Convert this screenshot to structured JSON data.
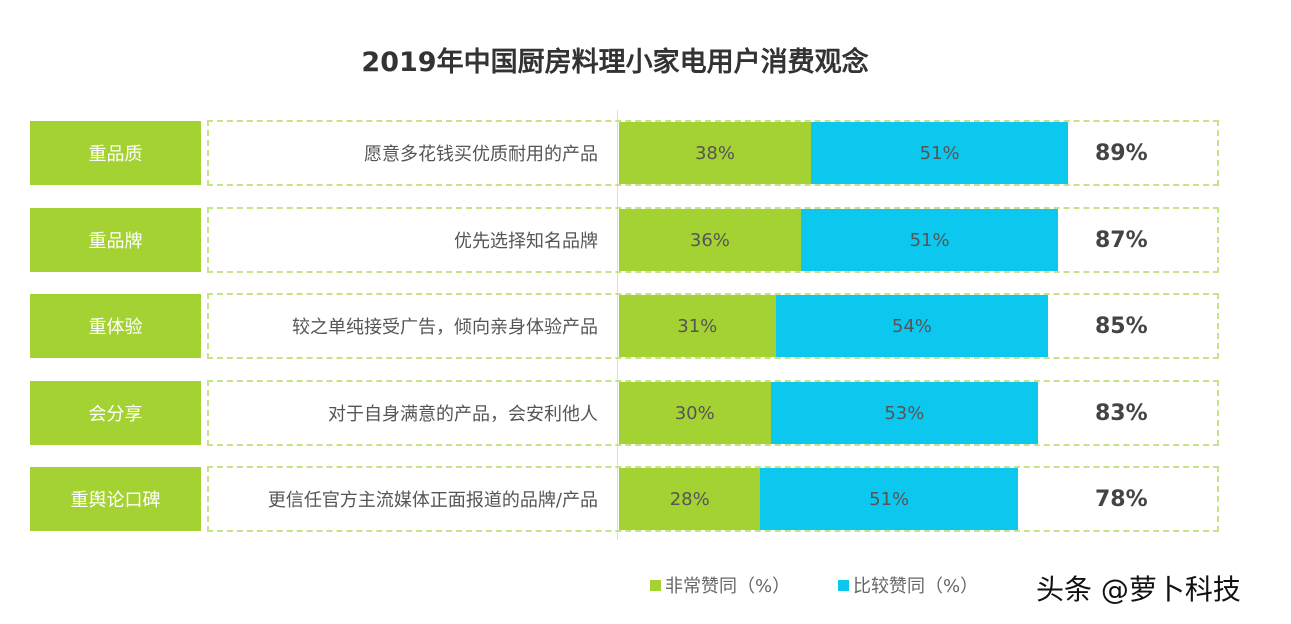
{
  "chart_data": {
    "type": "bar",
    "orientation": "horizontal",
    "stacked": true,
    "title": "2019年中国厨房料理小家电用户消费观念",
    "categories": [
      "重品质",
      "重品牌",
      "重体验",
      "会分享",
      "重舆论口碑"
    ],
    "descriptions": [
      "愿意多花钱买优质耐用的产品",
      "优先选择知名品牌",
      "较之单纯接受广告，倾向亲身体验产品",
      "对于自身满意的产品，会安利他人",
      "更信任官方主流媒体正面报道的品牌/产品"
    ],
    "series": [
      {
        "name": "非常赞同（%）",
        "color": "#a4d233",
        "values": [
          38,
          36,
          31,
          30,
          28
        ]
      },
      {
        "name": "比较赞同（%）",
        "color": "#0cc8ef",
        "values": [
          51,
          51,
          54,
          53,
          51
        ]
      }
    ],
    "totals": [
      "89%",
      "87%",
      "85%",
      "83%",
      "78%"
    ],
    "xlim": [
      0,
      100
    ],
    "legend_position": "bottom-right",
    "grid": false
  },
  "watermark": "头条 @萝卜科技"
}
